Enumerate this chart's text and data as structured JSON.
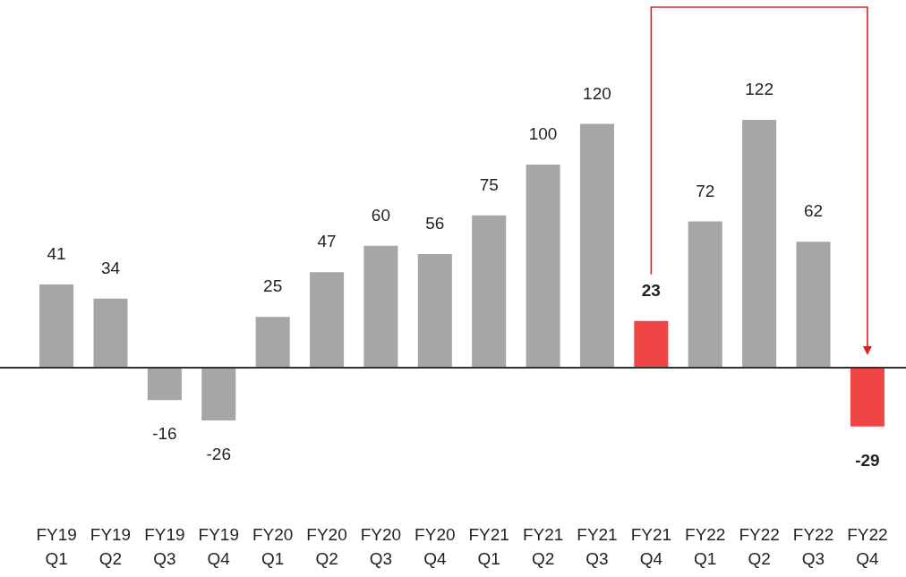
{
  "chart_data": {
    "type": "bar",
    "categories": [
      "FY19 Q1",
      "FY19 Q2",
      "FY19 Q3",
      "FY19 Q4",
      "FY20 Q1",
      "FY20 Q2",
      "FY20 Q3",
      "FY20 Q4",
      "FY21 Q1",
      "FY21 Q2",
      "FY21 Q3",
      "FY21 Q4",
      "FY22 Q1",
      "FY22 Q2",
      "FY22 Q3",
      "FY22 Q4"
    ],
    "values": [
      41,
      34,
      -16,
      -26,
      25,
      47,
      60,
      56,
      75,
      100,
      120,
      23,
      72,
      122,
      62,
      -29
    ],
    "colors": [
      "#a6a6a6",
      "#a6a6a6",
      "#a6a6a6",
      "#a6a6a6",
      "#a6a6a6",
      "#a6a6a6",
      "#a6a6a6",
      "#a6a6a6",
      "#a6a6a6",
      "#a6a6a6",
      "#a6a6a6",
      "#f04545",
      "#a6a6a6",
      "#a6a6a6",
      "#a6a6a6",
      "#f04545"
    ],
    "data_labels": true
  }
}
